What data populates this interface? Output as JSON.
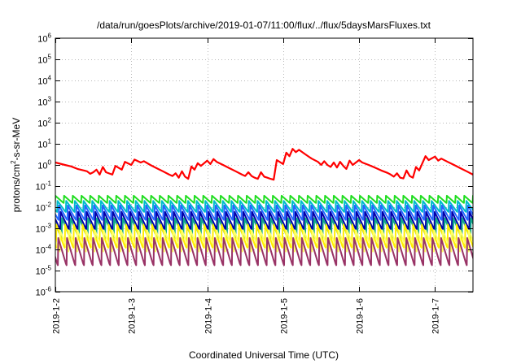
{
  "chart_data": {
    "type": "line",
    "title": "/data/run/goesPlots/archive/2019-01-07/11:00/flux/../flux/5daysMarsFluxes.txt",
    "xlabel": "Coordinated Universal Time (UTC)",
    "ylabel": "protons/cm2-s-sr-MeV",
    "ylabel_parts": {
      "base": "protons/cm",
      "sup": "2",
      "rest": "-s-sr-MeV"
    },
    "x_scale": "time",
    "x_range": [
      "2019-01-02T00:00",
      "2019-01-07T12:00"
    ],
    "x_tick_labels": [
      "2019-1-2",
      "2019-1-3",
      "2019-1-4",
      "2019-1-5",
      "2019-1-6",
      "2019-1-7"
    ],
    "y_scale": "log",
    "y_range": [
      1e-06,
      1000000.0
    ],
    "y_tick_labels": [
      {
        "base": "10",
        "exp": "6"
      },
      {
        "base": "10",
        "exp": "5"
      },
      {
        "base": "10",
        "exp": "4"
      },
      {
        "base": "10",
        "exp": "3"
      },
      {
        "base": "10",
        "exp": "2"
      },
      {
        "base": "10",
        "exp": "1"
      },
      {
        "base": "10",
        "exp": "0"
      },
      {
        "base": "10",
        "exp": "-1"
      },
      {
        "base": "10",
        "exp": "-2"
      },
      {
        "base": "10",
        "exp": "-3"
      },
      {
        "base": "10",
        "exp": "-4"
      },
      {
        "base": "10",
        "exp": "-5"
      },
      {
        "base": "10",
        "exp": "-6"
      }
    ],
    "grid": true,
    "series": [
      {
        "color": "#ff0000",
        "points": [
          [
            "2019-01-02T00:00",
            1.3
          ],
          [
            "2019-01-02T03:00",
            1.0
          ],
          [
            "2019-01-02T05:00",
            0.85
          ],
          [
            "2019-01-02T07:00",
            0.65
          ],
          [
            "2019-01-02T09:00",
            0.55
          ],
          [
            "2019-01-02T10:00",
            0.5
          ],
          [
            "2019-01-02T11:00",
            0.38
          ],
          [
            "2019-01-02T12:00",
            0.45
          ],
          [
            "2019-01-02T13:00",
            0.6
          ],
          [
            "2019-01-02T14:00",
            0.35
          ],
          [
            "2019-01-02T15:00",
            0.8
          ],
          [
            "2019-01-02T16:00",
            0.45
          ],
          [
            "2019-01-02T18:00",
            0.35
          ],
          [
            "2019-01-02T19:00",
            0.9
          ],
          [
            "2019-01-02T21:00",
            0.6
          ],
          [
            "2019-01-02T22:00",
            1.4
          ],
          [
            "2019-01-03T00:00",
            1.0
          ],
          [
            "2019-01-03T01:00",
            1.8
          ],
          [
            "2019-01-03T03:00",
            1.3
          ],
          [
            "2019-01-03T04:00",
            1.5
          ],
          [
            "2019-01-03T06:00",
            1.0
          ],
          [
            "2019-01-03T08:00",
            0.7
          ],
          [
            "2019-01-03T10:00",
            0.5
          ],
          [
            "2019-01-03T12:00",
            0.35
          ],
          [
            "2019-01-03T13:00",
            0.3
          ],
          [
            "2019-01-03T14:00",
            0.4
          ],
          [
            "2019-01-03T15:00",
            0.25
          ],
          [
            "2019-01-03T16:00",
            0.5
          ],
          [
            "2019-01-03T17:00",
            0.28
          ],
          [
            "2019-01-03T18:00",
            0.22
          ],
          [
            "2019-01-03T19:00",
            0.85
          ],
          [
            "2019-01-03T20:00",
            0.6
          ],
          [
            "2019-01-03T21:00",
            1.2
          ],
          [
            "2019-01-03T22:00",
            0.9
          ],
          [
            "2019-01-04T00:00",
            1.6
          ],
          [
            "2019-01-04T01:00",
            1.1
          ],
          [
            "2019-01-04T02:00",
            1.9
          ],
          [
            "2019-01-04T03:00",
            1.4
          ],
          [
            "2019-01-04T05:00",
            1.0
          ],
          [
            "2019-01-04T07:00",
            0.7
          ],
          [
            "2019-01-04T09:00",
            0.5
          ],
          [
            "2019-01-04T11:00",
            0.35
          ],
          [
            "2019-01-04T12:00",
            0.3
          ],
          [
            "2019-01-04T13:00",
            0.45
          ],
          [
            "2019-01-04T14:00",
            0.3
          ],
          [
            "2019-01-04T15:00",
            0.25
          ],
          [
            "2019-01-04T16:00",
            0.22
          ],
          [
            "2019-01-04T17:00",
            0.45
          ],
          [
            "2019-01-04T18:00",
            0.28
          ],
          [
            "2019-01-04T19:00",
            0.25
          ],
          [
            "2019-01-04T20:00",
            0.22
          ],
          [
            "2019-01-04T21:00",
            0.2
          ],
          [
            "2019-01-04T22:00",
            1.7
          ],
          [
            "2019-01-05T00:00",
            1.1
          ],
          [
            "2019-01-05T01:00",
            3.8
          ],
          [
            "2019-01-05T02:00",
            2.6
          ],
          [
            "2019-01-05T03:00",
            5.8
          ],
          [
            "2019-01-05T04:00",
            4.0
          ],
          [
            "2019-01-05T05:00",
            5.2
          ],
          [
            "2019-01-05T07:00",
            3.2
          ],
          [
            "2019-01-05T09:00",
            2.0
          ],
          [
            "2019-01-05T11:00",
            1.4
          ],
          [
            "2019-01-05T12:00",
            1.0
          ],
          [
            "2019-01-05T13:00",
            1.5
          ],
          [
            "2019-01-05T14:00",
            1.0
          ],
          [
            "2019-01-05T15:00",
            0.8
          ],
          [
            "2019-01-05T16:00",
            1.3
          ],
          [
            "2019-01-05T17:00",
            0.75
          ],
          [
            "2019-01-05T18:00",
            1.4
          ],
          [
            "2019-01-05T19:00",
            0.9
          ],
          [
            "2019-01-05T20:00",
            0.65
          ],
          [
            "2019-01-05T21:00",
            1.6
          ],
          [
            "2019-01-05T22:00",
            1.0
          ],
          [
            "2019-01-06T00:00",
            1.7
          ],
          [
            "2019-01-06T01:00",
            1.3
          ],
          [
            "2019-01-06T03:00",
            1.0
          ],
          [
            "2019-01-06T05:00",
            0.75
          ],
          [
            "2019-01-06T07:00",
            0.55
          ],
          [
            "2019-01-06T09:00",
            0.42
          ],
          [
            "2019-01-06T10:00",
            0.35
          ],
          [
            "2019-01-06T11:00",
            0.28
          ],
          [
            "2019-01-06T12:00",
            0.4
          ],
          [
            "2019-01-06T13:00",
            0.25
          ],
          [
            "2019-01-06T14:00",
            0.23
          ],
          [
            "2019-01-06T15:00",
            0.55
          ],
          [
            "2019-01-06T16:00",
            0.3
          ],
          [
            "2019-01-06T17:00",
            0.25
          ],
          [
            "2019-01-06T18:00",
            0.8
          ],
          [
            "2019-01-06T19:00",
            0.55
          ],
          [
            "2019-01-06T21:00",
            2.6
          ],
          [
            "2019-01-06T22:00",
            1.7
          ],
          [
            "2019-01-07T00:00",
            2.5
          ],
          [
            "2019-01-07T01:00",
            1.6
          ],
          [
            "2019-01-07T02:00",
            2.0
          ],
          [
            "2019-01-07T04:00",
            1.4
          ],
          [
            "2019-01-07T06:00",
            1.0
          ],
          [
            "2019-01-07T08:00",
            0.7
          ],
          [
            "2019-01-07T10:00",
            0.5
          ],
          [
            "2019-01-07T12:00",
            0.35
          ]
        ]
      },
      {
        "color": "#22dd22",
        "start": "2019-01-02T00:00",
        "period_hours": 2.75,
        "peak": 0.035,
        "trough": 0.016
      },
      {
        "color": "#00bbcc",
        "start": "2019-01-02T00:40",
        "period_hours": 2.75,
        "peak": 0.02,
        "trough": 0.006
      },
      {
        "color": "#2266ff",
        "start": "2019-01-02T01:10",
        "period_hours": 2.75,
        "peak": 0.012,
        "trough": 0.0025
      },
      {
        "color": "#0000aa",
        "start": "2019-01-02T01:40",
        "period_hours": 2.75,
        "peak": 0.006,
        "trough": 0.0009
      },
      {
        "color": "#11aa88",
        "start": "2019-01-02T02:05",
        "period_hours": 2.75,
        "peak": 0.003,
        "trough": 0.00035
      },
      {
        "color": "#ffee00",
        "start": "2019-01-02T00:20",
        "period_hours": 2.75,
        "peak": 0.0015,
        "trough": 0.00012
      },
      {
        "color": "#ffff66",
        "start": "2019-01-02T01:30",
        "period_hours": 2.75,
        "peak": 0.0008,
        "trough": 8e-05
      },
      {
        "color": "#993366",
        "start": "2019-01-02T00:55",
        "period_hours": 2.75,
        "peak": 0.00035,
        "trough": 1.8e-05
      }
    ]
  }
}
